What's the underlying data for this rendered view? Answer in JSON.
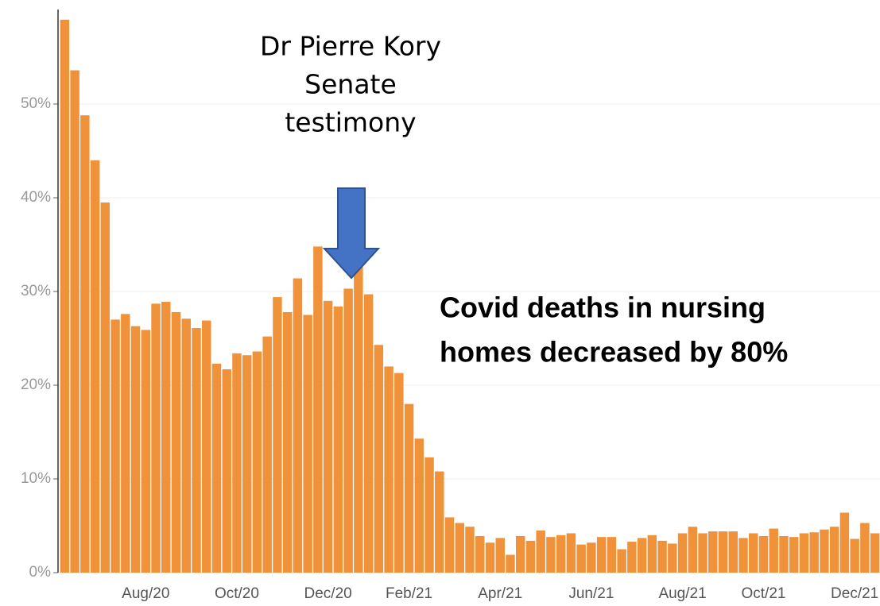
{
  "chart_data": {
    "type": "bar",
    "categories": [
      null,
      null,
      null,
      null,
      null,
      null,
      null,
      null,
      "Aug/20",
      null,
      null,
      null,
      null,
      null,
      null,
      null,
      null,
      "Oct/20",
      null,
      null,
      null,
      null,
      null,
      null,
      null,
      null,
      "Dec/20",
      null,
      null,
      null,
      null,
      null,
      null,
      null,
      "Feb/21",
      null,
      null,
      null,
      null,
      null,
      null,
      null,
      null,
      "Apr/21",
      null,
      null,
      null,
      null,
      null,
      null,
      null,
      null,
      "Jun/21",
      null,
      null,
      null,
      null,
      null,
      null,
      null,
      null,
      "Aug/21",
      null,
      null,
      null,
      null,
      null,
      null,
      null,
      "Oct/21",
      null,
      null,
      null,
      null,
      null,
      null,
      null,
      null,
      "Dec/21",
      null,
      null
    ],
    "values": [
      59,
      53.6,
      48.8,
      44,
      39.5,
      27,
      27.6,
      26.3,
      25.9,
      28.7,
      28.9,
      27.8,
      27.1,
      26.1,
      26.9,
      22.3,
      21.7,
      23.4,
      23.2,
      23.6,
      25.2,
      29.4,
      27.8,
      31.4,
      27.5,
      34.8,
      29,
      28.4,
      30.3,
      32.7,
      29.7,
      24.3,
      22,
      21.3,
      18,
      14.3,
      12.3,
      10.8,
      5.9,
      5.3,
      4.9,
      3.9,
      3.2,
      3.7,
      1.9,
      3.9,
      3.4,
      4.5,
      3.8,
      4,
      4.2,
      3,
      3.2,
      3.8,
      3.8,
      2.5,
      3.3,
      3.7,
      4,
      3.4,
      3.1,
      4.2,
      4.9,
      4.2,
      4.4,
      4.4,
      4.4,
      3.7,
      4.2,
      3.9,
      4.7,
      3.9,
      3.8,
      4.2,
      4.3,
      4.6,
      4.9,
      6.4,
      3.6,
      5.3,
      4.2
    ],
    "color": "#f0923a",
    "ylim": [
      0,
      60
    ],
    "yticks": [
      {
        "value": 0,
        "label": "0%"
      },
      {
        "value": 10,
        "label": "10%"
      },
      {
        "value": 20,
        "label": "20%"
      },
      {
        "value": 30,
        "label": "30%"
      },
      {
        "value": 40,
        "label": "40%"
      },
      {
        "value": 50,
        "label": "50%"
      }
    ],
    "grid": true,
    "annotations": [
      {
        "lines": [
          "Dr Pierre Kory",
          "Senate",
          "testimony"
        ]
      },
      {
        "lines": [
          "Covid deaths in nursing",
          "homes decreased by 80%"
        ]
      }
    ]
  }
}
